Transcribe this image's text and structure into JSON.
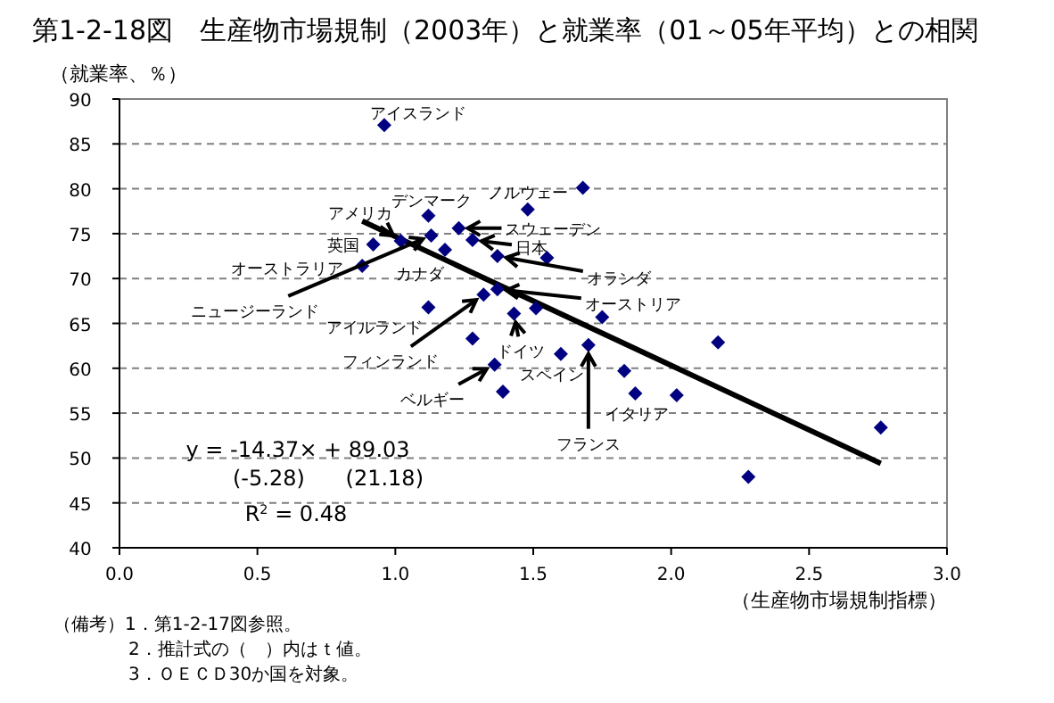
{
  "chart_data": {
    "type": "scatter",
    "title": "第1-2-18図　生産物市場規制（2003年）と就業率（01～05年平均）との相関",
    "xlabel": "（生産物市場規制指標）",
    "ylabel": "（就業率、％）",
    "xlim": [
      0,
      3
    ],
    "ylim": [
      40,
      90
    ],
    "xticks": [
      {
        "value": 0,
        "label": "0.0"
      },
      {
        "value": 0.5,
        "label": "0.5"
      },
      {
        "value": 1,
        "label": "1.0"
      },
      {
        "value": 1.5,
        "label": "1.5"
      },
      {
        "value": 2,
        "label": "2.0"
      },
      {
        "value": 2.5,
        "label": "2.5"
      },
      {
        "value": 3,
        "label": "3.0"
      }
    ],
    "yticks": [
      40,
      45,
      50,
      55,
      60,
      65,
      70,
      75,
      80,
      85,
      90
    ],
    "grid": "y",
    "series": [
      {
        "marker": "diamond",
        "color": "#000080",
        "x": [
          0.96,
          1.12,
          1.48,
          1.02,
          0.92,
          0.88,
          1.13,
          1.18,
          1.23,
          1.28,
          1.37,
          1.37,
          1.12,
          1.32,
          1.43,
          1.36,
          1.6,
          1.7,
          1.87,
          1.68,
          1.28,
          1.39,
          1.55,
          1.51,
          1.75,
          2.17,
          1.83,
          2.02,
          2.28,
          2.76
        ],
        "values": [
          87.1,
          77,
          77.7,
          74.2,
          73.8,
          71.4,
          74.8,
          73.2,
          75.6,
          74.3,
          72.5,
          68.8,
          66.8,
          68.2,
          66.1,
          60.4,
          61.6,
          62.6,
          57.2,
          80.1,
          63.3,
          57.4,
          72.3,
          66.7,
          65.7,
          62.9,
          59.7,
          57,
          47.9,
          53.4
        ]
      },
      {
        "type": "line",
        "color": "#000000",
        "x": [
          0.88,
          2.76
        ],
        "values": [
          76.4,
          49.4
        ]
      }
    ],
    "annotations": [
      {
        "text": "アイスランド",
        "x": 0.96,
        "y": 87.1
      },
      {
        "text": "デンマーク",
        "x": 1.12,
        "y": 77
      },
      {
        "text": "ノルウェー",
        "x": 1.48,
        "y": 77.7
      },
      {
        "text": "アメリカ",
        "x": 1.02,
        "y": 74.2
      },
      {
        "text": "英国",
        "x": 0.92,
        "y": 73.8
      },
      {
        "text": "オーストラリア",
        "x": 0.88,
        "y": 71.4
      },
      {
        "text": "ニュージーランド",
        "x": 1.13,
        "y": 74.8
      },
      {
        "text": "カナダ",
        "x": 1.18,
        "y": 73.2
      },
      {
        "text": "スウェーデン",
        "x": 1.23,
        "y": 75.6
      },
      {
        "text": "日本",
        "x": 1.28,
        "y": 74.3
      },
      {
        "text": "オランダ",
        "x": 1.37,
        "y": 72.5
      },
      {
        "text": "オーストリア",
        "x": 1.37,
        "y": 68.8
      },
      {
        "text": "アイルランド",
        "x": 1.12,
        "y": 66.8
      },
      {
        "text": "フィンランド",
        "x": 1.32,
        "y": 68.2
      },
      {
        "text": "ドイツ",
        "x": 1.43,
        "y": 66.1
      },
      {
        "text": "ベルギー",
        "x": 1.36,
        "y": 60.4
      },
      {
        "text": "スペイン",
        "x": 1.6,
        "y": 61.6
      },
      {
        "text": "フランス",
        "x": 1.7,
        "y": 62.6
      },
      {
        "text": "イタリア",
        "x": 1.87,
        "y": 57.2
      },
      "y = -14.37× + 89.03",
      "(-5.28)      (21.18)",
      "R$^{2}$ = 0.48",
      "（備考）1．第1-2-17図参照。",
      "2．推計式の（　）内はｔ値。",
      "3．ＯＥＣＤ30か国を対象。"
    ]
  }
}
